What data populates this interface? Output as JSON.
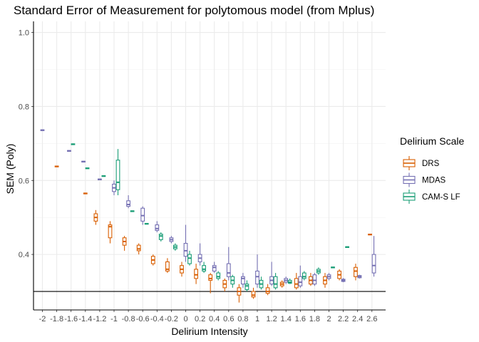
{
  "chart_data": {
    "type": "boxplot",
    "title": "Standard Error of Measurement for polytomous model (from Mplus)",
    "xlabel": "Delirium Intensity",
    "ylabel": "SEM (Poly)",
    "ylim": [
      0.25,
      1.03
    ],
    "yticks": [
      0.4,
      0.6,
      0.8,
      1.0
    ],
    "ytick_labels": [
      "0.4",
      "0.6",
      "0.8",
      "1.0"
    ],
    "categories": [
      "-2",
      "-1.8",
      "-1.6",
      "-1.4",
      "-1.2",
      "-1",
      "-0.8",
      "-0.6",
      "-0.4",
      "-0.2",
      "0",
      "0.2",
      "0.4",
      "0.6",
      "0.8",
      "1",
      "1.2",
      "1.4",
      "1.6",
      "1.8",
      "2",
      "2.2",
      "2.4",
      "2.6"
    ],
    "hline": 0.3,
    "grid": true,
    "legend": {
      "title": "Delirium Scale",
      "position": "right",
      "entries": [
        "DRS",
        "MDAS",
        "CAM-S LF"
      ]
    },
    "colors": {
      "DRS": "#d95f02",
      "MDAS": "#7570b3",
      "CAM-S LF": "#1b9e77"
    },
    "series": [
      {
        "name": "DRS",
        "boxes": [
          {
            "x": -1.8,
            "min": 0.637,
            "q1": 0.637,
            "med": 0.638,
            "q3": 0.639,
            "max": 0.639
          },
          {
            "x": -1.5,
            "min": 0.564,
            "q1": 0.564,
            "med": 0.565,
            "q3": 0.566,
            "max": 0.566
          },
          {
            "x": -1.2,
            "min": 0.48,
            "q1": 0.49,
            "med": 0.5,
            "q3": 0.51,
            "max": 0.52
          },
          {
            "x": -1.0,
            "min": 0.43,
            "q1": 0.445,
            "med": 0.475,
            "q3": 0.48,
            "max": 0.49
          },
          {
            "x": -0.8,
            "min": 0.41,
            "q1": 0.425,
            "med": 0.435,
            "q3": 0.445,
            "max": 0.45
          },
          {
            "x": -0.6,
            "min": 0.4,
            "q1": 0.41,
            "med": 0.415,
            "q3": 0.425,
            "max": 0.43
          },
          {
            "x": -0.4,
            "min": 0.37,
            "q1": 0.375,
            "med": 0.385,
            "q3": 0.395,
            "max": 0.4
          },
          {
            "x": -0.2,
            "min": 0.35,
            "q1": 0.355,
            "med": 0.36,
            "q3": 0.38,
            "max": 0.39
          },
          {
            "x": 0.0,
            "min": 0.34,
            "q1": 0.35,
            "med": 0.36,
            "q3": 0.37,
            "max": 0.38
          },
          {
            "x": 0.2,
            "min": 0.32,
            "q1": 0.335,
            "med": 0.345,
            "q3": 0.36,
            "max": 0.375
          },
          {
            "x": 0.4,
            "min": 0.295,
            "q1": 0.33,
            "med": 0.335,
            "q3": 0.345,
            "max": 0.35
          },
          {
            "x": 0.6,
            "min": 0.3,
            "q1": 0.31,
            "med": 0.32,
            "q3": 0.33,
            "max": 0.335
          },
          {
            "x": 0.8,
            "min": 0.27,
            "q1": 0.29,
            "med": 0.3,
            "q3": 0.31,
            "max": 0.32
          },
          {
            "x": 1.0,
            "min": 0.28,
            "q1": 0.285,
            "med": 0.29,
            "q3": 0.3,
            "max": 0.31
          },
          {
            "x": 1.2,
            "min": 0.29,
            "q1": 0.295,
            "med": 0.3,
            "q3": 0.31,
            "max": 0.32
          },
          {
            "x": 1.4,
            "min": 0.31,
            "q1": 0.315,
            "med": 0.32,
            "q3": 0.325,
            "max": 0.33
          },
          {
            "x": 1.6,
            "min": 0.305,
            "q1": 0.31,
            "med": 0.32,
            "q3": 0.335,
            "max": 0.35
          },
          {
            "x": 1.8,
            "min": 0.315,
            "q1": 0.32,
            "med": 0.33,
            "q3": 0.34,
            "max": 0.35
          },
          {
            "x": 2.0,
            "min": 0.31,
            "q1": 0.32,
            "med": 0.33,
            "q3": 0.34,
            "max": 0.35
          },
          {
            "x": 2.2,
            "min": 0.33,
            "q1": 0.335,
            "med": 0.345,
            "q3": 0.355,
            "max": 0.36
          },
          {
            "x": 2.4,
            "min": 0.33,
            "q1": 0.34,
            "med": 0.355,
            "q3": 0.365,
            "max": 0.375
          },
          {
            "x": 2.6,
            "min": 0.453,
            "q1": 0.453,
            "med": 0.454,
            "q3": 0.455,
            "max": 0.455
          }
        ]
      },
      {
        "name": "MDAS",
        "boxes": [
          {
            "x": -2.0,
            "min": 0.735,
            "q1": 0.735,
            "med": 0.736,
            "q3": 0.737,
            "max": 0.737
          },
          {
            "x": -1.6,
            "min": 0.679,
            "q1": 0.679,
            "med": 0.68,
            "q3": 0.681,
            "max": 0.681
          },
          {
            "x": -1.4,
            "min": 0.65,
            "q1": 0.65,
            "med": 0.651,
            "q3": 0.652,
            "max": 0.652
          },
          {
            "x": -1.2,
            "min": 0.602,
            "q1": 0.602,
            "med": 0.603,
            "q3": 0.604,
            "max": 0.604
          },
          {
            "x": -1.0,
            "min": 0.56,
            "q1": 0.57,
            "med": 0.58,
            "q3": 0.59,
            "max": 0.6
          },
          {
            "x": -0.8,
            "min": 0.525,
            "q1": 0.53,
            "med": 0.535,
            "q3": 0.545,
            "max": 0.56
          },
          {
            "x": -0.6,
            "min": 0.48,
            "q1": 0.49,
            "med": 0.505,
            "q3": 0.525,
            "max": 0.53
          },
          {
            "x": -0.4,
            "min": 0.46,
            "q1": 0.465,
            "med": 0.47,
            "q3": 0.48,
            "max": 0.49
          },
          {
            "x": -0.2,
            "min": 0.43,
            "q1": 0.435,
            "med": 0.44,
            "q3": 0.445,
            "max": 0.45
          },
          {
            "x": 0.0,
            "min": 0.38,
            "q1": 0.395,
            "med": 0.41,
            "q3": 0.43,
            "max": 0.48
          },
          {
            "x": 0.2,
            "min": 0.37,
            "q1": 0.38,
            "med": 0.39,
            "q3": 0.4,
            "max": 0.43
          },
          {
            "x": 0.4,
            "min": 0.35,
            "q1": 0.355,
            "med": 0.365,
            "q3": 0.37,
            "max": 0.38
          },
          {
            "x": 0.6,
            "min": 0.33,
            "q1": 0.34,
            "med": 0.35,
            "q3": 0.375,
            "max": 0.42
          },
          {
            "x": 0.8,
            "min": 0.31,
            "q1": 0.32,
            "med": 0.335,
            "q3": 0.34,
            "max": 0.35
          },
          {
            "x": 1.0,
            "min": 0.31,
            "q1": 0.32,
            "med": 0.34,
            "q3": 0.355,
            "max": 0.4
          },
          {
            "x": 1.2,
            "min": 0.315,
            "q1": 0.32,
            "med": 0.33,
            "q3": 0.34,
            "max": 0.38
          },
          {
            "x": 1.4,
            "min": 0.32,
            "q1": 0.325,
            "med": 0.33,
            "q3": 0.335,
            "max": 0.34
          },
          {
            "x": 1.6,
            "min": 0.31,
            "q1": 0.315,
            "med": 0.325,
            "q3": 0.34,
            "max": 0.37
          },
          {
            "x": 1.8,
            "min": 0.315,
            "q1": 0.32,
            "med": 0.33,
            "q3": 0.345,
            "max": 0.35
          },
          {
            "x": 2.0,
            "min": 0.33,
            "q1": 0.335,
            "med": 0.34,
            "q3": 0.345,
            "max": 0.35
          },
          {
            "x": 2.2,
            "min": 0.325,
            "q1": 0.327,
            "med": 0.33,
            "q3": 0.333,
            "max": 0.336
          },
          {
            "x": 2.4,
            "min": 0.335,
            "q1": 0.337,
            "med": 0.34,
            "q3": 0.343,
            "max": 0.345
          },
          {
            "x": 2.6,
            "min": 0.34,
            "q1": 0.35,
            "med": 0.37,
            "q3": 0.4,
            "max": 0.45
          }
        ]
      },
      {
        "name": "CAM-S LF",
        "boxes": [
          {
            "x": -1.6,
            "min": 0.697,
            "q1": 0.697,
            "med": 0.698,
            "q3": 0.699,
            "max": 0.699
          },
          {
            "x": -1.4,
            "min": 0.632,
            "q1": 0.632,
            "med": 0.633,
            "q3": 0.634,
            "max": 0.634
          },
          {
            "x": -1.2,
            "min": 0.611,
            "q1": 0.611,
            "med": 0.612,
            "q3": 0.613,
            "max": 0.613
          },
          {
            "x": -1.0,
            "min": 0.56,
            "q1": 0.575,
            "med": 0.595,
            "q3": 0.655,
            "max": 0.685
          },
          {
            "x": -0.8,
            "min": 0.516,
            "q1": 0.516,
            "med": 0.517,
            "q3": 0.518,
            "max": 0.518
          },
          {
            "x": -0.6,
            "min": 0.482,
            "q1": 0.482,
            "med": 0.483,
            "q3": 0.484,
            "max": 0.484
          },
          {
            "x": -0.4,
            "min": 0.435,
            "q1": 0.44,
            "med": 0.45,
            "q3": 0.455,
            "max": 0.46
          },
          {
            "x": -0.2,
            "min": 0.41,
            "q1": 0.415,
            "med": 0.42,
            "q3": 0.425,
            "max": 0.43
          },
          {
            "x": 0.0,
            "min": 0.37,
            "q1": 0.375,
            "med": 0.39,
            "q3": 0.4,
            "max": 0.41
          },
          {
            "x": 0.2,
            "min": 0.35,
            "q1": 0.355,
            "med": 0.36,
            "q3": 0.37,
            "max": 0.38
          },
          {
            "x": 0.4,
            "min": 0.33,
            "q1": 0.335,
            "med": 0.34,
            "q3": 0.35,
            "max": 0.355
          },
          {
            "x": 0.6,
            "min": 0.31,
            "q1": 0.32,
            "med": 0.33,
            "q3": 0.34,
            "max": 0.345
          },
          {
            "x": 0.8,
            "min": 0.3,
            "q1": 0.305,
            "med": 0.315,
            "q3": 0.32,
            "max": 0.33
          },
          {
            "x": 1.0,
            "min": 0.305,
            "q1": 0.31,
            "med": 0.32,
            "q3": 0.33,
            "max": 0.34
          },
          {
            "x": 1.2,
            "min": 0.305,
            "q1": 0.31,
            "med": 0.32,
            "q3": 0.34,
            "max": 0.35
          },
          {
            "x": 1.4,
            "min": 0.32,
            "q1": 0.322,
            "med": 0.325,
            "q3": 0.33,
            "max": 0.335
          },
          {
            "x": 1.6,
            "min": 0.33,
            "q1": 0.335,
            "med": 0.34,
            "q3": 0.35,
            "max": 0.355
          },
          {
            "x": 1.8,
            "min": 0.345,
            "q1": 0.35,
            "med": 0.355,
            "q3": 0.36,
            "max": 0.365
          },
          {
            "x": 2.0,
            "min": 0.364,
            "q1": 0.364,
            "med": 0.365,
            "q3": 0.366,
            "max": 0.366
          },
          {
            "x": 2.2,
            "min": 0.419,
            "q1": 0.419,
            "med": 0.42,
            "q3": 0.421,
            "max": 0.421
          }
        ]
      }
    ]
  }
}
